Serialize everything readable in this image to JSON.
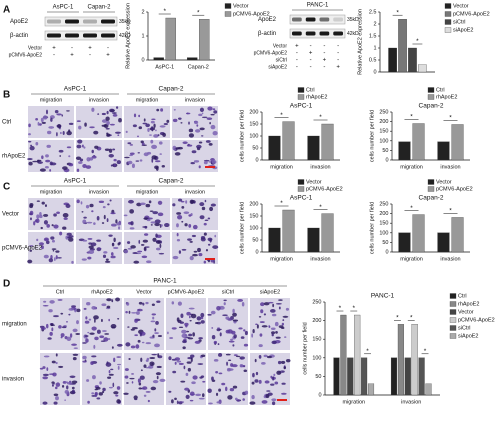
{
  "panel_labels": [
    "A",
    "B",
    "C",
    "D"
  ],
  "blots": [
    {
      "cell_lines": [
        "AsPC-1",
        "Capan-2"
      ],
      "bands": [
        {
          "name": "ApoE2",
          "size": "35kD"
        },
        {
          "name": "β-actin",
          "size": "42kD"
        }
      ],
      "conditions": [
        {
          "label": "Vector",
          "signs": [
            "+",
            "-",
            "+",
            "-"
          ]
        },
        {
          "label": "pCMV6-ApoE2",
          "signs": [
            "-",
            "+",
            "-",
            "+"
          ]
        }
      ]
    },
    {
      "cell_lines": [
        "PANC-1"
      ],
      "bands": [
        {
          "name": "ApoE2",
          "size": "35kD"
        },
        {
          "name": "β-actin",
          "size": "42kD"
        }
      ],
      "conditions": [
        {
          "label": "Vector",
          "signs": [
            "+",
            "-",
            "-",
            "-"
          ]
        },
        {
          "label": "pCMV6-ApoE2",
          "signs": [
            "-",
            "+",
            "-",
            "-"
          ]
        },
        {
          "label": "siCtrl",
          "signs": [
            "-",
            "-",
            "+",
            "-"
          ]
        },
        {
          "label": "siApoE2",
          "signs": [
            "-",
            "-",
            "-",
            "+"
          ]
        }
      ]
    }
  ],
  "micrographs": [
    {
      "groups": [
        {
          "label": "AsPC-1",
          "columns": [
            "migration",
            "invasion"
          ]
        },
        {
          "label": "Capan-2",
          "columns": [
            "migration",
            "invasion"
          ]
        }
      ],
      "rows": [
        "Ctrl",
        "rhApoE2"
      ]
    },
    {
      "groups": [
        {
          "label": "AsPC-1",
          "columns": [
            "migration",
            "invasion"
          ]
        },
        {
          "label": "Capan-2",
          "columns": [
            "migration",
            "invasion"
          ]
        }
      ],
      "rows": [
        "Vector",
        "pCMV6-ApoE2"
      ]
    },
    {
      "groups": [
        {
          "label": "PANC-1",
          "columns": [
            "Ctrl",
            "rhApoE2",
            "Vector",
            "pCMV6-ApoE2",
            "siCtrl",
            "siApoE2"
          ]
        }
      ],
      "rows": [
        "migration",
        "invasion"
      ]
    }
  ],
  "chart_data": [
    {
      "type": "bar",
      "y_label": "Relative ApoE2 expression",
      "categories": [
        "AsPC-1",
        "Capan-2"
      ],
      "series": [
        {
          "name": "Vector",
          "color": "#222222",
          "values": [
            0.1,
            0.1
          ]
        },
        {
          "name": "pCMV6-ApoE2",
          "color": "#999999",
          "values": [
            1.75,
            1.7
          ]
        }
      ],
      "ylim": [
        0,
        2
      ],
      "yticks": [
        0,
        1,
        2
      ],
      "legend": "right",
      "annotations": [
        "*",
        "*"
      ]
    },
    {
      "type": "bar",
      "y_label": "Relative ApoE2 expression",
      "categories": [
        null
      ],
      "series": [
        {
          "name": "Vector",
          "color": "#222222",
          "values": [
            1.0
          ]
        },
        {
          "name": "pCMV6-ApoE2",
          "color": "#777777",
          "values": [
            2.2
          ]
        },
        {
          "name": "siCtrl",
          "color": "#444444",
          "values": [
            1.0
          ]
        },
        {
          "name": "siApoE2",
          "color": "#dddddd",
          "values": [
            0.3
          ]
        }
      ],
      "ylim": [
        0,
        2.5
      ],
      "yticks": [
        0,
        0.5,
        1,
        1.5,
        2,
        2.5
      ],
      "legend": "right",
      "annotations": [
        "*",
        "*"
      ]
    },
    {
      "type": "bar",
      "title": "AsPC-1",
      "y_label": "cells number per field",
      "categories": [
        "migration",
        "invasion"
      ],
      "series": [
        {
          "name": "Ctrl",
          "color": "#222222",
          "values": [
            100,
            100
          ]
        },
        {
          "name": "rhApoE2",
          "color": "#999999",
          "values": [
            160,
            150
          ]
        }
      ],
      "ylim": [
        0,
        200
      ],
      "yticks": [
        0,
        50,
        100,
        150,
        200
      ],
      "legend": "upper right",
      "annotations": [
        "*",
        "*"
      ]
    },
    {
      "type": "bar",
      "title": "Capan-2",
      "y_label": "cells number per field",
      "categories": [
        "migration",
        "invasion"
      ],
      "series": [
        {
          "name": "Ctrl",
          "color": "#222222",
          "values": [
            95,
            95
          ]
        },
        {
          "name": "rhApoE2",
          "color": "#999999",
          "values": [
            190,
            185
          ]
        }
      ],
      "ylim": [
        0,
        250
      ],
      "yticks": [
        0,
        50,
        100,
        150,
        200,
        250
      ],
      "legend": "upper right",
      "annotations": [
        "*",
        "*"
      ]
    },
    {
      "type": "bar",
      "title": "AsPC-1",
      "y_label": "cells number per field",
      "categories": [
        "migration",
        "invasion"
      ],
      "series": [
        {
          "name": "Vector",
          "color": "#222222",
          "values": [
            100,
            100
          ]
        },
        {
          "name": "pCMV6-ApoE2",
          "color": "#999999",
          "values": [
            175,
            160
          ]
        }
      ],
      "ylim": [
        0,
        200
      ],
      "yticks": [
        0,
        50,
        100,
        150,
        200
      ],
      "legend": "upper right",
      "annotations": [
        "*",
        "*"
      ]
    },
    {
      "type": "bar",
      "title": "Capan-2",
      "y_label": "cells number per field",
      "categories": [
        "migration",
        "invasion"
      ],
      "series": [
        {
          "name": "Vector",
          "color": "#222222",
          "values": [
            100,
            100
          ]
        },
        {
          "name": "pCMV6-ApoE2",
          "color": "#999999",
          "values": [
            195,
            180
          ]
        }
      ],
      "ylim": [
        0,
        250
      ],
      "yticks": [
        0,
        50,
        100,
        150,
        200,
        250
      ],
      "legend": "upper right",
      "annotations": [
        "*",
        "*"
      ]
    },
    {
      "type": "bar",
      "title": "PANC-1",
      "y_label": "cells number per field",
      "categories": [
        "migration",
        "invasion"
      ],
      "series": [
        {
          "name": "Ctrl",
          "color": "#222222",
          "values": [
            100,
            100
          ]
        },
        {
          "name": "rhApoE2",
          "color": "#888888",
          "values": [
            215,
            190
          ]
        },
        {
          "name": "Vector",
          "color": "#444444",
          "values": [
            100,
            100
          ]
        },
        {
          "name": "pCMV6-ApoE2",
          "color": "#cccccc",
          "values": [
            215,
            190
          ]
        },
        {
          "name": "siCtrl",
          "color": "#555555",
          "values": [
            100,
            100
          ]
        },
        {
          "name": "siApoE2",
          "color": "#aaaaaa",
          "values": [
            30,
            30
          ]
        }
      ],
      "ylim": [
        0,
        250
      ],
      "yticks": [
        0,
        50,
        100,
        150,
        200,
        250
      ],
      "legend": "right",
      "annotations": [
        "*",
        "*",
        "*",
        "*",
        "*",
        "*"
      ]
    }
  ]
}
